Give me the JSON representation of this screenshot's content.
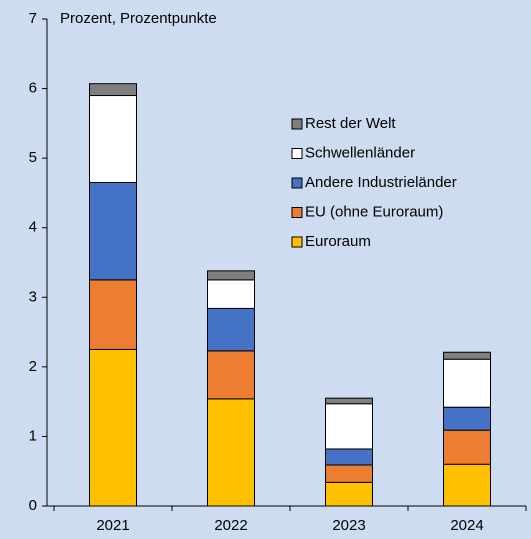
{
  "chart_data": {
    "type": "stacked_bar",
    "title": "Prozent, Prozentpunkte",
    "categories": [
      "2021",
      "2022",
      "2023",
      "2024"
    ],
    "series": [
      {
        "name": "Euroraum",
        "color": "#ffc000",
        "values": [
          2.25,
          1.54,
          0.34,
          0.6
        ]
      },
      {
        "name": "EU (ohne Euroraum)",
        "color": "#ed7d31",
        "values": [
          1.0,
          0.69,
          0.25,
          0.49
        ]
      },
      {
        "name": "Andere Industrieländer",
        "color": "#4472c4",
        "values": [
          1.4,
          0.61,
          0.23,
          0.33
        ]
      },
      {
        "name": "Schwellenländer",
        "color": "#ffffff",
        "values": [
          1.25,
          0.41,
          0.65,
          0.69
        ]
      },
      {
        "name": "Rest der Welt",
        "color": "#7f7f7f",
        "values": [
          0.17,
          0.13,
          0.08,
          0.1
        ]
      }
    ],
    "ylim": [
      0,
      7
    ],
    "yticks": [
      0,
      1,
      2,
      3,
      4,
      5,
      6,
      7
    ]
  }
}
